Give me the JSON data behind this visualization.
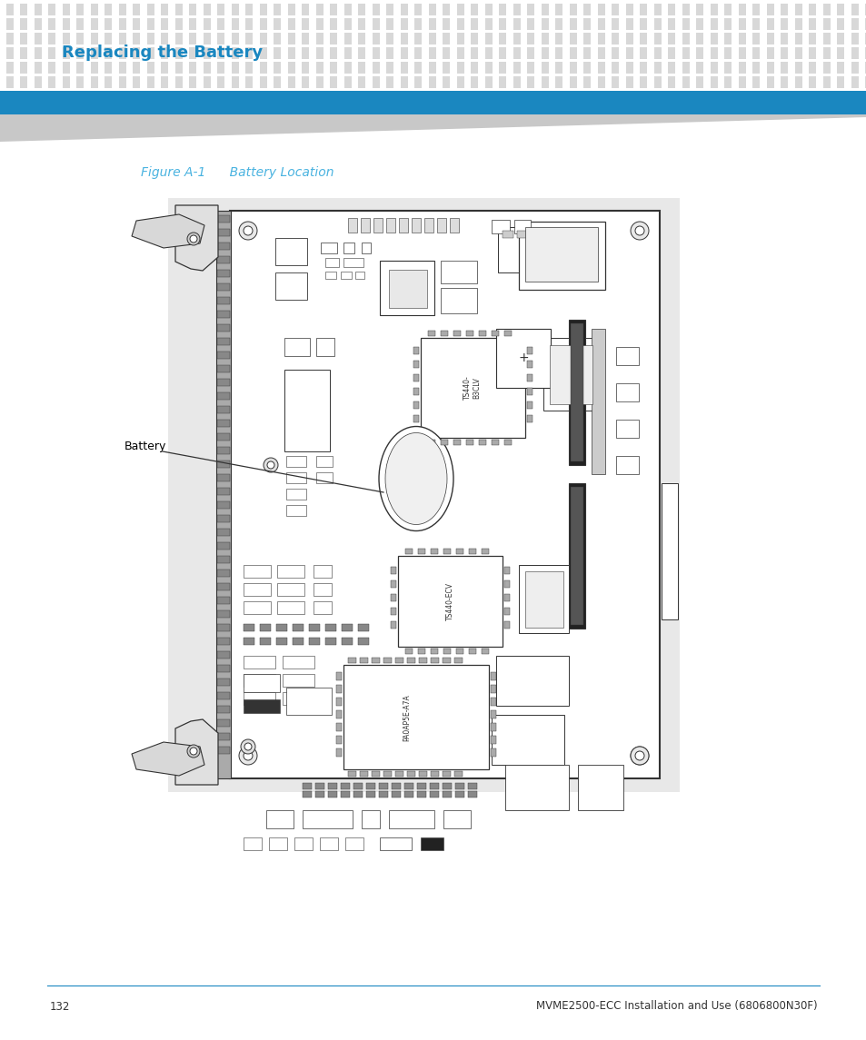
{
  "page_bg": "#ffffff",
  "header_bg": "#1a87c0",
  "title_text": "Replacing the Battery",
  "title_color": "#1a87c0",
  "title_fontsize": 13,
  "figure_caption": "Figure A-1      Battery Location",
  "figure_caption_color": "#4ab3e0",
  "figure_caption_fontsize": 10,
  "footer_line_color": "#1a87c0",
  "footer_page_num": "132",
  "footer_doc_title": "MVME2500-ECC Installation and Use (6806800N30F)",
  "footer_fontsize": 8.5,
  "dot_color": "#d8d8d8",
  "battery_label": "Battery",
  "battery_label_color": "#000000",
  "battery_label_fontsize": 9,
  "pcb_bg": "#e8e8e8",
  "pcb_board_bg": "#ffffff",
  "pcb_line_color": "#333333",
  "pcb_lw": 0.7
}
